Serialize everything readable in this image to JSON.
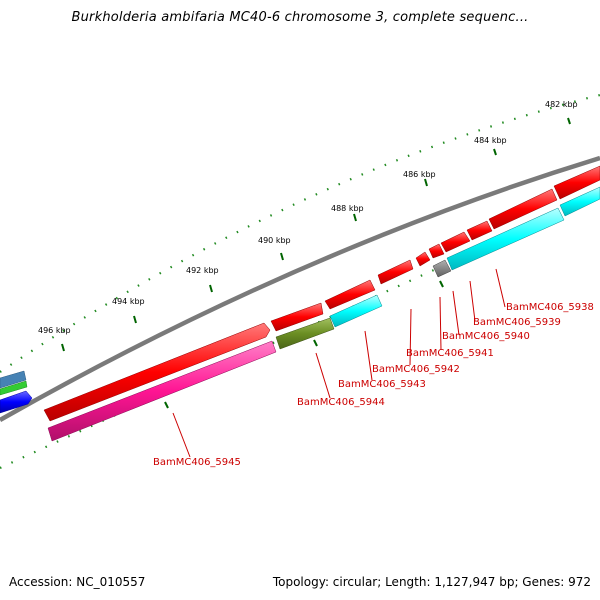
{
  "title": "Burkholderia ambifaria MC40-6 chromosome 3, complete sequenc...",
  "footer": {
    "accession": "Accession: NC_010557",
    "summary": "Topology: circular; Length: 1,127,947 bp; Genes: 972"
  },
  "scale_labels": [
    "482 kbp",
    "484 kbp",
    "486 kbp",
    "488 kbp",
    "490 kbp",
    "492 kbp",
    "494 kbp",
    "496 kbp"
  ],
  "gene_labels": [
    "BamMC406_5938",
    "BamMC406_5939",
    "BamMC406_5940",
    "BamMC406_5941",
    "BamMC406_5942",
    "BamMC406_5943",
    "BamMC406_5944",
    "BamMC406_5945"
  ],
  "colors": {
    "gene_red": "#ff0000",
    "magenta": "#ff1493",
    "cyan": "#00ffff",
    "olive": "#6b8e23",
    "gray": "#808080",
    "blue": "#0000ff",
    "green": "#33cc33",
    "steelblue": "#4682b4",
    "tick_green": "#006400",
    "label_red": "#cc0000"
  }
}
